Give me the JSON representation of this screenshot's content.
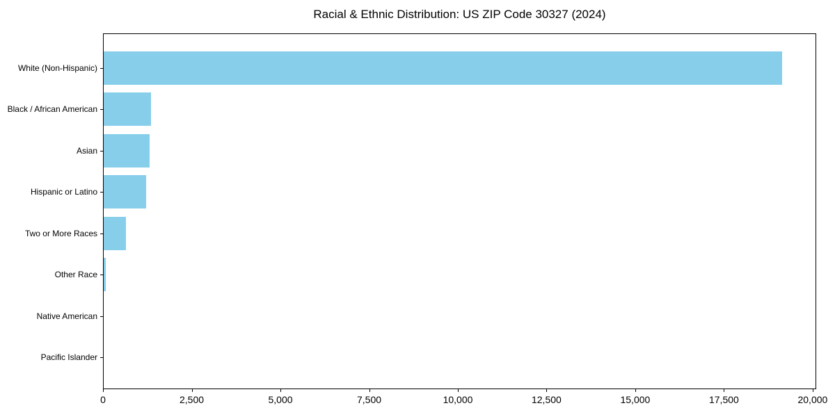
{
  "chart_data": {
    "type": "bar",
    "orientation": "horizontal",
    "title": "Racial & Ethnic Distribution: US ZIP Code 30327 (2024)",
    "categories": [
      "White (Non-Hispanic)",
      "Black / African American",
      "Asian",
      "Hispanic or Latino",
      "Two or More Races",
      "Other Race",
      "Native American",
      "Pacific Islander"
    ],
    "values": [
      19150,
      1330,
      1290,
      1200,
      630,
      50,
      0,
      0
    ],
    "xlabel": "",
    "ylabel": "",
    "xlim": [
      0,
      20100
    ],
    "x_ticks": [
      0,
      2500,
      5000,
      7500,
      10000,
      12500,
      15000,
      17500,
      20000
    ],
    "x_tick_labels": [
      "0",
      "2,500",
      "5,000",
      "7,500",
      "10,000",
      "12,500",
      "15,000",
      "17,500",
      "20,000"
    ],
    "bar_color": "#87CEEB",
    "axis_color": "#000000",
    "text_color": "#000000",
    "background_color": "#ffffff",
    "grid": false,
    "legend": "none"
  }
}
